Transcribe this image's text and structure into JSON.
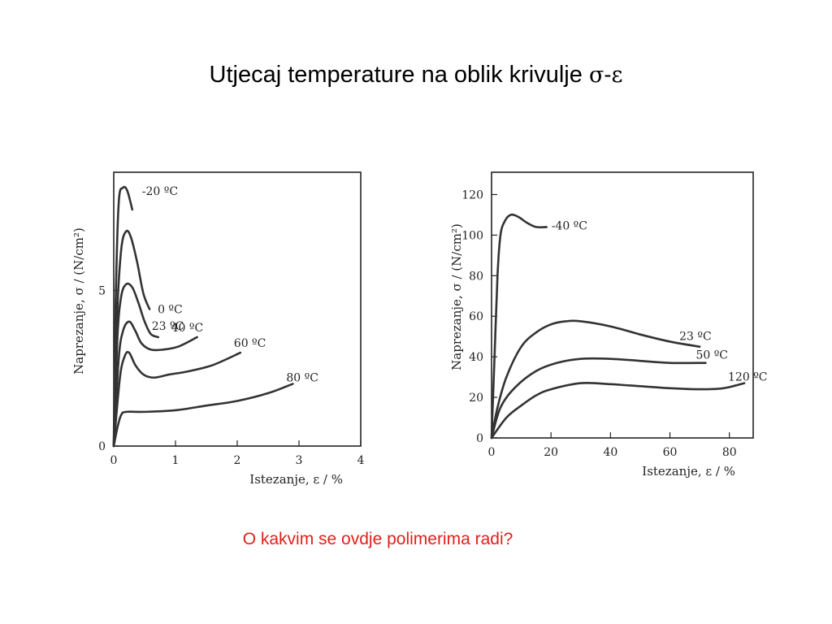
{
  "slide": {
    "title_text": "Utjecaj temperature na oblik krivulje ",
    "title_symbol": "σ-ε",
    "question": "O kakvim se ovdje polimerima radi?"
  },
  "chart_data": [
    {
      "type": "line",
      "xlabel": "Istezanje, ε / %",
      "ylabel": "Naprezanje, σ / (N/cm²)",
      "xlim": [
        0,
        4
      ],
      "ylim": [
        0,
        8.8
      ],
      "x_ticks": [
        0,
        1,
        2,
        3,
        4
      ],
      "y_ticks": [
        0,
        5
      ],
      "series": [
        {
          "name": "-20 ºC",
          "points": [
            [
              0,
              0
            ],
            [
              0.03,
              4.5
            ],
            [
              0.08,
              7.8
            ],
            [
              0.15,
              8.3
            ],
            [
              0.22,
              8.2
            ],
            [
              0.3,
              7.6
            ]
          ]
        },
        {
          "name": "0 ºC",
          "points": [
            [
              0,
              0
            ],
            [
              0.05,
              4.0
            ],
            [
              0.12,
              6.3
            ],
            [
              0.2,
              6.9
            ],
            [
              0.28,
              6.7
            ],
            [
              0.38,
              5.9
            ],
            [
              0.48,
              4.9
            ],
            [
              0.58,
              4.4
            ]
          ]
        },
        {
          "name": "23 ºC",
          "points": [
            [
              0,
              0
            ],
            [
              0.06,
              3.5
            ],
            [
              0.12,
              4.8
            ],
            [
              0.2,
              5.2
            ],
            [
              0.3,
              5.1
            ],
            [
              0.4,
              4.6
            ],
            [
              0.5,
              4.0
            ],
            [
              0.6,
              3.6
            ],
            [
              0.72,
              3.5
            ]
          ]
        },
        {
          "name": "40 ºC",
          "points": [
            [
              0,
              0
            ],
            [
              0.08,
              2.8
            ],
            [
              0.15,
              3.7
            ],
            [
              0.25,
              4.0
            ],
            [
              0.35,
              3.7
            ],
            [
              0.45,
              3.3
            ],
            [
              0.6,
              3.1
            ],
            [
              0.8,
              3.1
            ],
            [
              1.05,
              3.2
            ],
            [
              1.35,
              3.5
            ]
          ]
        },
        {
          "name": "60 ºC",
          "points": [
            [
              0,
              0
            ],
            [
              0.1,
              2.2
            ],
            [
              0.18,
              2.9
            ],
            [
              0.25,
              3.0
            ],
            [
              0.35,
              2.6
            ],
            [
              0.48,
              2.3
            ],
            [
              0.65,
              2.2
            ],
            [
              0.9,
              2.3
            ],
            [
              1.2,
              2.4
            ],
            [
              1.6,
              2.6
            ],
            [
              2.05,
              3.0
            ]
          ]
        },
        {
          "name": "80 ºC",
          "points": [
            [
              0,
              0
            ],
            [
              0.06,
              0.6
            ],
            [
              0.12,
              1.0
            ],
            [
              0.2,
              1.1
            ],
            [
              0.5,
              1.1
            ],
            [
              1.0,
              1.15
            ],
            [
              1.5,
              1.3
            ],
            [
              2.0,
              1.45
            ],
            [
              2.5,
              1.7
            ],
            [
              2.9,
              2.0
            ]
          ]
        }
      ]
    },
    {
      "type": "line",
      "xlabel": "Istezanje, ε / %",
      "ylabel": "Naprezanje, σ / (N/cm²)",
      "xlim": [
        0,
        88
      ],
      "ylim": [
        0,
        131
      ],
      "x_ticks": [
        0,
        20,
        40,
        60,
        80
      ],
      "y_ticks": [
        0,
        20,
        40,
        60,
        80,
        100,
        120
      ],
      "series": [
        {
          "name": "-40 ºC",
          "points": [
            [
              0,
              0
            ],
            [
              1,
              40
            ],
            [
              2,
              80
            ],
            [
              3,
              100
            ],
            [
              4.5,
              107
            ],
            [
              6.5,
              110
            ],
            [
              9,
              109
            ],
            [
              12,
              106
            ],
            [
              15,
              104
            ],
            [
              18.5,
              104
            ]
          ]
        },
        {
          "name": "23 ºC",
          "points": [
            [
              0,
              0
            ],
            [
              2,
              15
            ],
            [
              5,
              30
            ],
            [
              10,
              45
            ],
            [
              15,
              52
            ],
            [
              20,
              56
            ],
            [
              25,
              57.5
            ],
            [
              30,
              57.5
            ],
            [
              40,
              55
            ],
            [
              50,
              51
            ],
            [
              60,
              47.5
            ],
            [
              70,
              45
            ]
          ]
        },
        {
          "name": "50 ºC",
          "points": [
            [
              0,
              0
            ],
            [
              3,
              15
            ],
            [
              8,
              25
            ],
            [
              15,
              33
            ],
            [
              22,
              37
            ],
            [
              30,
              39
            ],
            [
              40,
              39
            ],
            [
              50,
              38
            ],
            [
              60,
              37
            ],
            [
              72,
              37
            ]
          ]
        },
        {
          "name": "120 ºC",
          "points": [
            [
              0,
              0
            ],
            [
              5,
              10
            ],
            [
              10,
              16
            ],
            [
              15,
              21
            ],
            [
              20,
              24
            ],
            [
              30,
              27
            ],
            [
              40,
              26.5
            ],
            [
              50,
              25.5
            ],
            [
              60,
              24.5
            ],
            [
              70,
              24
            ],
            [
              78,
              24.5
            ],
            [
              85,
              27
            ]
          ]
        }
      ]
    }
  ]
}
